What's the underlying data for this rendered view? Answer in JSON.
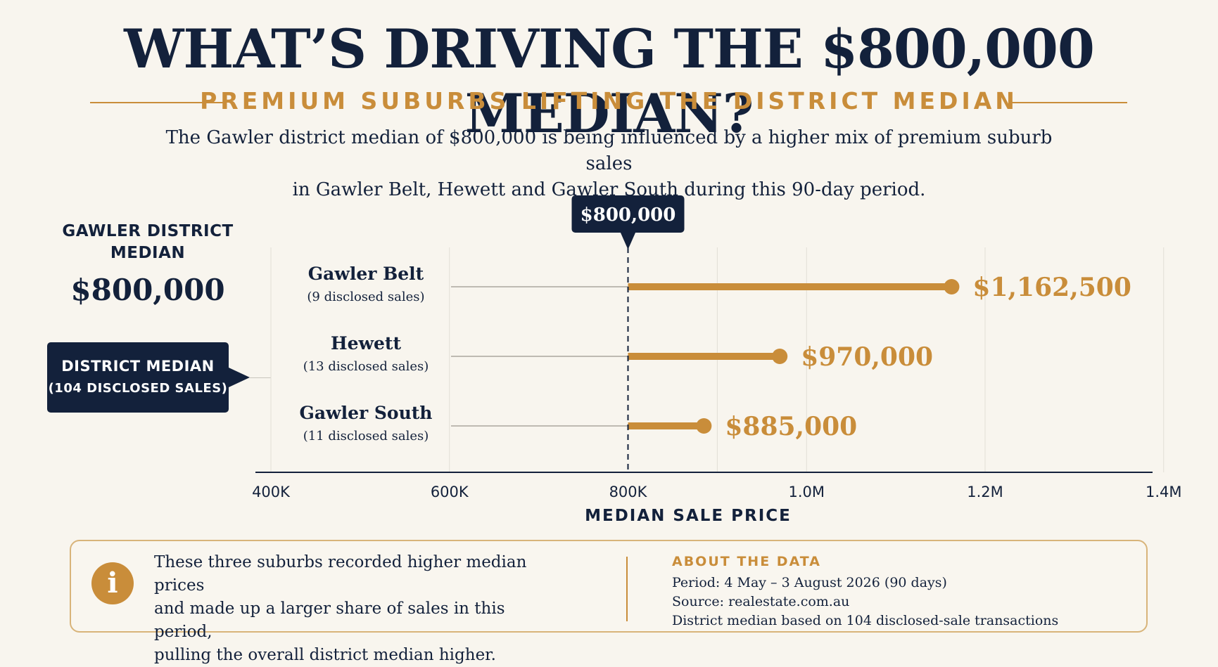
{
  "title": "WHAT’S DRIVING THE $800,000 MEDIAN?",
  "subtitle": "PREMIUM SUBURBS LIFTING THE DISTRICT MEDIAN",
  "intro": {
    "line1": "The Gawler district median of $800,000 is being influenced by a higher mix of premium suburb sales",
    "line2": "in Gawler Belt, Hewett and Gawler South during this 90-day period."
  },
  "side_panel": {
    "label_line1": "GAWLER DISTRICT",
    "label_line2": "MEDIAN",
    "value": "$800,000",
    "box_line1": "DISTRICT MEDIAN",
    "box_line2": "(104 DISCLOSED SALES)"
  },
  "chart_data": {
    "type": "bar",
    "orientation": "horizontal",
    "baseline": 800000,
    "baseline_label": "$800,000",
    "xlabel": "MEDIAN SALE PRICE",
    "xlim": [
      400000,
      1400000
    ],
    "x_ticks": [
      {
        "value": 400000,
        "label": "400K"
      },
      {
        "value": 600000,
        "label": "600K"
      },
      {
        "value": 800000,
        "label": "800K"
      },
      {
        "value": 1000000,
        "label": "1.0M"
      },
      {
        "value": 1200000,
        "label": "1.2M"
      },
      {
        "value": 1400000,
        "label": "1.4M"
      }
    ],
    "grid": true,
    "categories": [
      {
        "name": "Gawler Belt",
        "note": "(9 disclosed sales)",
        "value": 1162500,
        "label": "$1,162,500"
      },
      {
        "name": "Hewett",
        "note": "(13 disclosed sales)",
        "value": 970000,
        "label": "$970,000"
      },
      {
        "name": "Gawler South",
        "note": "(11 disclosed sales)",
        "value": 885000,
        "label": "$885,000"
      }
    ],
    "colors": {
      "bar": "#c98d3a",
      "label": "#c98d3a",
      "baseline": "#13213b"
    }
  },
  "info": {
    "icon": "info-icon",
    "text_line1": "These three suburbs recorded higher median prices",
    "text_line2": "and made up a larger share of sales in this period,",
    "text_line3": "pulling the overall district median higher.",
    "about_title": "ABOUT THE DATA",
    "about_lines": [
      "Period: 4 May – 3 August 2026 (90 days)",
      "Source: realestate.com.au",
      "District median based on 104 disclosed-sale transactions"
    ]
  },
  "colors": {
    "navy": "#13213b",
    "gold": "#c98d3a",
    "background": "#f8f5ee"
  }
}
